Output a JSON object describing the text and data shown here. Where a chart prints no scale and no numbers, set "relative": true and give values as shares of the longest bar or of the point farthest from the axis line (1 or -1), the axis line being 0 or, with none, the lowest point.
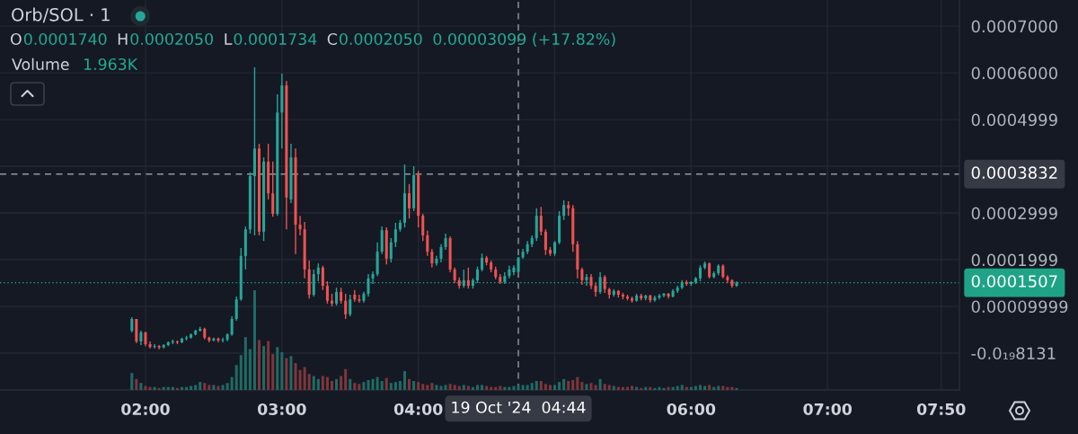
{
  "chart_data": [
    {
      "type": "candlestick",
      "title": "Orb/SOL · 1",
      "annotations": [
        "O",
        "0.0001740",
        "H",
        "0.0002050",
        "L",
        "0.0001734",
        "C",
        "0.0002050",
        "0.00003099 (+17.82%)"
      ],
      "x": [
        "2024-10-19T01:54",
        "2024-10-19T01:56",
        "2024-10-19T01:58",
        "2024-10-19T02:00",
        "2024-10-19T02:02",
        "2024-10-19T02:04",
        "2024-10-19T02:06",
        "2024-10-19T02:08",
        "2024-10-19T02:10",
        "2024-10-19T02:12",
        "2024-10-19T02:14",
        "2024-10-19T02:16",
        "2024-10-19T02:18",
        "2024-10-19T02:20",
        "2024-10-19T02:22",
        "2024-10-19T02:24",
        "2024-10-19T02:26",
        "2024-10-19T02:28",
        "2024-10-19T02:30",
        "2024-10-19T02:32",
        "2024-10-19T02:34",
        "2024-10-19T02:36",
        "2024-10-19T02:38",
        "2024-10-19T02:40",
        "2024-10-19T02:42",
        "2024-10-19T02:44",
        "2024-10-19T02:46",
        "2024-10-19T02:48",
        "2024-10-19T02:50",
        "2024-10-19T02:52",
        "2024-10-19T02:54",
        "2024-10-19T02:56",
        "2024-10-19T02:58",
        "2024-10-19T03:00",
        "2024-10-19T03:02",
        "2024-10-19T03:04",
        "2024-10-19T03:06",
        "2024-10-19T03:08",
        "2024-10-19T03:10",
        "2024-10-19T03:12",
        "2024-10-19T03:14",
        "2024-10-19T03:16",
        "2024-10-19T03:18",
        "2024-10-19T03:20",
        "2024-10-19T03:22",
        "2024-10-19T03:24",
        "2024-10-19T03:26",
        "2024-10-19T03:28",
        "2024-10-19T03:30",
        "2024-10-19T03:32",
        "2024-10-19T03:34",
        "2024-10-19T03:36",
        "2024-10-19T03:38",
        "2024-10-19T03:40",
        "2024-10-19T03:42",
        "2024-10-19T03:44",
        "2024-10-19T03:46",
        "2024-10-19T03:48",
        "2024-10-19T03:50",
        "2024-10-19T03:52",
        "2024-10-19T03:54",
        "2024-10-19T03:56",
        "2024-10-19T03:58",
        "2024-10-19T04:00",
        "2024-10-19T04:02",
        "2024-10-19T04:04",
        "2024-10-19T04:06",
        "2024-10-19T04:08",
        "2024-10-19T04:10",
        "2024-10-19T04:12",
        "2024-10-19T04:14",
        "2024-10-19T04:16",
        "2024-10-19T04:18",
        "2024-10-19T04:20",
        "2024-10-19T04:22",
        "2024-10-19T04:24",
        "2024-10-19T04:26",
        "2024-10-19T04:28",
        "2024-10-19T04:30",
        "2024-10-19T04:32",
        "2024-10-19T04:34",
        "2024-10-19T04:36",
        "2024-10-19T04:38",
        "2024-10-19T04:40",
        "2024-10-19T04:42",
        "2024-10-19T04:44",
        "2024-10-19T04:46",
        "2024-10-19T04:48",
        "2024-10-19T04:50",
        "2024-10-19T04:52",
        "2024-10-19T04:54",
        "2024-10-19T04:56",
        "2024-10-19T04:58",
        "2024-10-19T05:00",
        "2024-10-19T05:02",
        "2024-10-19T05:04",
        "2024-10-19T05:06",
        "2024-10-19T05:08",
        "2024-10-19T05:10",
        "2024-10-19T05:12",
        "2024-10-19T05:14",
        "2024-10-19T05:16",
        "2024-10-19T05:18",
        "2024-10-19T05:20",
        "2024-10-19T05:22",
        "2024-10-19T05:24",
        "2024-10-19T05:26",
        "2024-10-19T05:28",
        "2024-10-19T05:30",
        "2024-10-19T05:32",
        "2024-10-19T05:34",
        "2024-10-19T05:36",
        "2024-10-19T05:38",
        "2024-10-19T05:40",
        "2024-10-19T05:42",
        "2024-10-19T05:44",
        "2024-10-19T05:46",
        "2024-10-19T05:48",
        "2024-10-19T05:50",
        "2024-10-19T05:52",
        "2024-10-19T05:54",
        "2024-10-19T05:56",
        "2024-10-19T05:58",
        "2024-10-19T06:00",
        "2024-10-19T06:02",
        "2024-10-19T06:04",
        "2024-10-19T06:06",
        "2024-10-19T06:08",
        "2024-10-19T06:10",
        "2024-10-19T06:12",
        "2024-10-19T06:14",
        "2024-10-19T06:16",
        "2024-10-19T06:18",
        "2024-10-19T06:20"
      ],
      "ohlc": [
        [
          4.8e-05,
          7.7e-05,
          4.4e-05,
          7.3e-05
        ],
        [
          7.3e-05,
          7.3e-05,
          2.1e-05,
          2.5e-05
        ],
        [
          2.5e-05,
          4.8e-05,
          1.7e-05,
          4.4e-05
        ],
        [
          4.4e-05,
          4.6e-05,
          1.5e-05,
          1.9e-05
        ],
        [
          1.9e-05,
          2.5e-05,
          1e-05,
          1.3e-05
        ],
        [
          1.3e-05,
          1.9e-05,
          1e-05,
          1.5e-05
        ],
        [
          1.5e-05,
          1.7e-05,
          8e-06,
          1.2e-05
        ],
        [
          1.2e-05,
          1.9e-05,
          1e-05,
          1.7e-05
        ],
        [
          1.7e-05,
          2.5e-05,
          1.5e-05,
          2.3e-05
        ],
        [
          2.3e-05,
          2.9e-05,
          1.9e-05,
          2.5e-05
        ],
        [
          2.5e-05,
          2.7e-05,
          1.9e-05,
          2.3e-05
        ],
        [
          2.3e-05,
          3.3e-05,
          2.1e-05,
          3.1e-05
        ],
        [
          3.1e-05,
          3.7e-05,
          2.7e-05,
          3.3e-05
        ],
        [
          3.3e-05,
          4.2e-05,
          3.1e-05,
          4e-05
        ],
        [
          4e-05,
          5e-05,
          3.8e-05,
          4.8e-05
        ],
        [
          4.8e-05,
          5.6e-05,
          4.6e-05,
          5.2e-05
        ],
        [
          5.2e-05,
          5.4e-05,
          2.9e-05,
          3.3e-05
        ],
        [
          3.3e-05,
          3.5e-05,
          2.3e-05,
          2.7e-05
        ],
        [
          2.7e-05,
          3.3e-05,
          2.5e-05,
          3.1e-05
        ],
        [
          3.1e-05,
          3.3e-05,
          2.3e-05,
          2.7e-05
        ],
        [
          2.7e-05,
          3.3e-05,
          2.3e-05,
          2.9e-05
        ],
        [
          2.9e-05,
          4.2e-05,
          2.5e-05,
          4e-05
        ],
        [
          4e-05,
          7.9e-05,
          3.7e-05,
          7.3e-05
        ],
        [
          7.3e-05,
          0.000121,
          6.9e-05,
          0.000115
        ],
        [
          0.000115,
          0.000225,
          0.000112,
          0.000208
        ],
        [
          0.000208,
          0.000271,
          0.000179,
          0.000265
        ],
        [
          0.000265,
          0.000387,
          0.000256,
          0.000379
        ],
        [
          0.000379,
          0.000612,
          0.000252,
          0.000438
        ],
        [
          0.000438,
          0.000448,
          0.000252,
          0.00026
        ],
        [
          0.00026,
          0.000419,
          0.00024,
          0.00041
        ],
        [
          0.00041,
          0.000448,
          0.000329,
          0.000342
        ],
        [
          0.000342,
          0.00041,
          0.000292,
          0.000298
        ],
        [
          0.000298,
          0.000554,
          0.000294,
          0.000515
        ],
        [
          0.000515,
          0.000598,
          0.000438,
          0.000573
        ],
        [
          0.000573,
          0.000583,
          0.000265,
          0.000333
        ],
        [
          0.000329,
          0.000448,
          0.000321,
          0.000419
        ],
        [
          0.000419,
          0.000438,
          0.000212,
          0.000275
        ],
        [
          0.000275,
          0.000294,
          0.000252,
          0.000265
        ],
        [
          0.000265,
          0.000281,
          0.00016,
          0.000179
        ],
        [
          0.000179,
          0.000198,
          0.000117,
          0.000125
        ],
        [
          0.000125,
          0.000179,
          0.000121,
          0.000169
        ],
        [
          0.000169,
          0.000192,
          0.000154,
          0.000183
        ],
        [
          0.000183,
          0.000187,
          0.000135,
          0.000144
        ],
        [
          0.000144,
          0.000154,
          0.000106,
          0.000112
        ],
        [
          0.000112,
          0.000127,
          0.0001,
          0.000106
        ],
        [
          0.000106,
          0.00014,
          0.000102,
          0.000131
        ],
        [
          0.000131,
          0.00014,
          0.000106,
          0.000112
        ],
        [
          0.000112,
          0.000127,
          7.3e-05,
          8.3e-05
        ],
        [
          8.3e-05,
          0.000125,
          7.9e-05,
          0.000115
        ],
        [
          0.000125,
          0.000135,
          0.00011,
          0.000115
        ],
        [
          0.000115,
          0.000125,
          0.000108,
          0.000112
        ],
        [
          0.000112,
          0.000131,
          0.000108,
          0.000127
        ],
        [
          0.000127,
          0.000169,
          0.000121,
          0.00016
        ],
        [
          0.00016,
          0.000175,
          0.000148,
          0.000169
        ],
        [
          0.000169,
          0.000237,
          0.000165,
          0.000217
        ],
        [
          0.000217,
          0.000271,
          0.000212,
          0.000263
        ],
        [
          0.000263,
          0.000269,
          0.00019,
          0.000202
        ],
        [
          0.000202,
          0.000246,
          0.000194,
          0.000237
        ],
        [
          0.000237,
          0.000279,
          0.000227,
          0.000265
        ],
        [
          0.000265,
          0.000285,
          0.00026,
          0.000279
        ],
        [
          0.000279,
          0.000404,
          0.000269,
          0.000342
        ],
        [
          0.000342,
          0.000362,
          0.000288,
          0.00031
        ],
        [
          0.00031,
          0.0004,
          0.000304,
          0.000381
        ],
        [
          0.000381,
          0.00039,
          0.000269,
          0.000294
        ],
        [
          0.000294,
          0.000298,
          0.00024,
          0.000252
        ],
        [
          0.000252,
          0.000262,
          0.000208,
          0.000217
        ],
        [
          0.000217,
          0.000223,
          0.000183,
          0.000192
        ],
        [
          0.000192,
          0.000208,
          0.000187,
          0.000202
        ],
        [
          0.000202,
          0.000233,
          0.000194,
          0.000227
        ],
        [
          0.000227,
          0.000256,
          0.000221,
          0.000246
        ],
        [
          0.000246,
          0.00025,
          0.000173,
          0.000179
        ],
        [
          0.000179,
          0.000183,
          0.00015,
          0.000156
        ],
        [
          0.000156,
          0.000162,
          0.000138,
          0.000144
        ],
        [
          0.000144,
          0.000179,
          0.00014,
          0.000156
        ],
        [
          0.000156,
          0.000183,
          0.000138,
          0.000144
        ],
        [
          0.000144,
          0.00016,
          0.000138,
          0.000156
        ],
        [
          0.000156,
          0.000185,
          0.00015,
          0.000179
        ],
        [
          0.000179,
          0.000213,
          0.000175,
          0.000204
        ],
        [
          0.000204,
          0.000208,
          0.000188,
          0.000194
        ],
        [
          0.000194,
          0.000198,
          0.000173,
          0.000179
        ],
        [
          0.000179,
          0.000185,
          0.000158,
          0.000163
        ],
        [
          0.000163,
          0.000169,
          0.000148,
          0.000152
        ],
        [
          0.000152,
          0.000173,
          0.000148,
          0.000165
        ],
        [
          0.000165,
          0.000187,
          0.00016,
          0.000179
        ],
        [
          0.000173,
          0.000188,
          0.000167,
          0.000183
        ],
        [
          0.000174,
          0.000205,
          0.0001734,
          0.000205
        ],
        [
          0.000205,
          0.000223,
          0.000202,
          0.000217
        ],
        [
          0.000217,
          0.00024,
          0.000212,
          0.000233
        ],
        [
          0.000233,
          0.000252,
          0.000227,
          0.000246
        ],
        [
          0.000246,
          0.00031,
          0.00024,
          0.000294
        ],
        [
          0.000294,
          0.000313,
          0.000252,
          0.00026
        ],
        [
          0.00026,
          0.000265,
          0.00021,
          0.000221
        ],
        [
          0.000221,
          0.000227,
          0.000208,
          0.000213
        ],
        [
          0.000213,
          0.00024,
          0.000208,
          0.000237
        ],
        [
          0.000237,
          0.000304,
          0.000233,
          0.000294
        ],
        [
          0.000294,
          0.000327,
          0.000285,
          0.000317
        ],
        [
          0.000317,
          0.000325,
          0.000294,
          0.00031
        ],
        [
          0.00031,
          0.000317,
          0.000217,
          0.000233
        ],
        [
          0.000233,
          0.00024,
          0.00016,
          0.000179
        ],
        [
          0.000179,
          0.000183,
          0.000146,
          0.000156
        ],
        [
          0.000156,
          0.000169,
          0.000144,
          0.000163
        ],
        [
          0.000163,
          0.000169,
          0.000137,
          0.000144
        ],
        [
          0.000144,
          0.00015,
          0.000121,
          0.000131
        ],
        [
          0.000131,
          0.000173,
          0.000127,
          0.000163
        ],
        [
          0.000163,
          0.000167,
          0.000129,
          0.000137
        ],
        [
          0.000137,
          0.00014,
          0.000117,
          0.000125
        ],
        [
          0.000125,
          0.000137,
          0.000121,
          0.000133
        ],
        [
          0.000133,
          0.000135,
          0.000119,
          0.000125
        ],
        [
          0.000125,
          0.000129,
          0.000115,
          0.000121
        ],
        [
          0.000121,
          0.000125,
          0.000113,
          0.000117
        ],
        [
          0.000117,
          0.000121,
          0.000108,
          0.000112
        ],
        [
          0.000112,
          0.000127,
          0.00011,
          0.000123
        ],
        [
          0.000123,
          0.000127,
          0.000113,
          0.000117
        ],
        [
          0.000117,
          0.000125,
          0.000113,
          0.000123
        ],
        [
          0.000123,
          0.000125,
          0.000108,
          0.000113
        ],
        [
          0.000113,
          0.000123,
          0.00011,
          0.000119
        ],
        [
          0.000119,
          0.000127,
          0.000115,
          0.000123
        ],
        [
          0.000123,
          0.000129,
          0.000119,
          0.000127
        ],
        [
          0.000127,
          0.000129,
          0.000117,
          0.000121
        ],
        [
          0.000121,
          0.000137,
          0.000119,
          0.000133
        ],
        [
          0.000133,
          0.000144,
          0.000129,
          0.00014
        ],
        [
          0.00014,
          0.000156,
          0.000137,
          0.000152
        ],
        [
          0.000152,
          0.000156,
          0.000144,
          0.000148
        ],
        [
          0.000148,
          0.000154,
          0.000144,
          0.000152
        ],
        [
          0.000152,
          0.000163,
          0.000148,
          0.00016
        ],
        [
          0.00016,
          0.000188,
          0.000154,
          0.000183
        ],
        [
          0.000183,
          0.000196,
          0.000179,
          0.000192
        ],
        [
          0.000192,
          0.000194,
          0.00016,
          0.000163
        ],
        [
          0.000163,
          0.000175,
          0.00016,
          0.000171
        ],
        [
          0.000171,
          0.00019,
          0.000167,
          0.000187
        ],
        [
          0.000187,
          0.00019,
          0.00016,
          0.000163
        ],
        [
          0.000163,
          0.000167,
          0.00015,
          0.000156
        ],
        [
          0.000156,
          0.000158,
          0.00014,
          0.000144
        ],
        [
          0.000144,
          0.000154,
          0.000142,
          0.0001507
        ]
      ],
      "colors": [
        "#26a69a",
        "#ef5350",
        "#26a69a",
        "#ef5350",
        "#ef5350",
        "#26a69a",
        "#ef5350",
        "#26a69a",
        "#26a69a",
        "#26a69a",
        "#ef5350",
        "#26a69a",
        "#26a69a",
        "#26a69a",
        "#26a69a",
        "#26a69a",
        "#ef5350",
        "#ef5350",
        "#26a69a",
        "#ef5350",
        "#26a69a",
        "#26a69a",
        "#26a69a",
        "#26a69a",
        "#26a69a",
        "#26a69a",
        "#26a69a",
        "#26a69a",
        "#ef5350",
        "#26a69a",
        "#ef5350",
        "#ef5350",
        "#26a69a",
        "#26a69a",
        "#ef5350",
        "#26a69a",
        "#ef5350",
        "#ef5350",
        "#ef5350",
        "#ef5350",
        "#26a69a",
        "#26a69a",
        "#ef5350",
        "#ef5350",
        "#ef5350",
        "#26a69a",
        "#ef5350",
        "#ef5350",
        "#26a69a",
        "#ef5350",
        "#ef5350",
        "#26a69a",
        "#26a69a",
        "#26a69a",
        "#26a69a",
        "#26a69a",
        "#ef5350",
        "#26a69a",
        "#26a69a",
        "#26a69a",
        "#26a69a",
        "#ef5350",
        "#26a69a",
        "#ef5350",
        "#ef5350",
        "#ef5350",
        "#ef5350",
        "#26a69a",
        "#26a69a",
        "#26a69a",
        "#ef5350",
        "#ef5350",
        "#ef5350",
        "#26a69a",
        "#ef5350",
        "#26a69a",
        "#26a69a",
        "#26a69a",
        "#ef5350",
        "#ef5350",
        "#ef5350",
        "#ef5350",
        "#26a69a",
        "#26a69a",
        "#26a69a",
        "#26a69a",
        "#26a69a",
        "#26a69a",
        "#26a69a",
        "#26a69a",
        "#ef5350",
        "#ef5350",
        "#ef5350",
        "#26a69a",
        "#26a69a",
        "#26a69a",
        "#ef5350",
        "#ef5350",
        "#ef5350",
        "#ef5350",
        "#26a69a",
        "#ef5350",
        "#ef5350",
        "#26a69a",
        "#ef5350",
        "#ef5350",
        "#26a69a",
        "#ef5350",
        "#ef5350",
        "#ef5350",
        "#ef5350",
        "#26a69a",
        "#ef5350",
        "#26a69a",
        "#ef5350",
        "#26a69a",
        "#26a69a",
        "#26a69a",
        "#ef5350",
        "#26a69a",
        "#26a69a",
        "#26a69a",
        "#ef5350",
        "#26a69a",
        "#26a69a",
        "#26a69a",
        "#26a69a",
        "#ef5350",
        "#26a69a",
        "#26a69a",
        "#ef5350",
        "#ef5350",
        "#ef5350",
        "#26a69a"
      ],
      "xlim": [
        "2024-10-19T00:56",
        "2024-10-19T07:58"
      ],
      "xticks": [
        {
          "value": "2024-10-19T02:00",
          "label": "02:00"
        },
        {
          "value": "2024-10-19T03:00",
          "label": "03:00"
        },
        {
          "value": "2024-10-19T04:00",
          "label": "04:00"
        },
        {
          "value": "2024-10-19T05:00",
          "label": null
        },
        {
          "value": "2024-10-19T06:00",
          "label": "06:00"
        },
        {
          "value": "2024-10-19T07:00",
          "label": "07:00"
        },
        {
          "value": "2024-10-19T07:50",
          "label": "07:50"
        }
      ],
      "ylim": [
        -7.9e-05,
        0.000756
      ],
      "yticks": [
        {
          "value": -8.131e-21,
          "label": "-0.0₁₉8131"
        },
        {
          "value": 9.999e-05,
          "label": "0.00009999"
        },
        {
          "value": 0.0001999,
          "label": "0.0001999"
        },
        {
          "value": 0.0002999,
          "label": "0.0002999"
        },
        {
          "value": 0.0004,
          "label": null
        },
        {
          "value": 0.0004999,
          "label": "0.0004999"
        },
        {
          "value": 0.0006,
          "label": "0.0006000"
        },
        {
          "value": 0.0007,
          "label": "0.0007000"
        }
      ],
      "grid": true,
      "ref_lines": [
        {
          "axis": "x",
          "value": "2024-10-19T04:44",
          "label": "19 Oct '24  04:44",
          "line_style": "dashed",
          "color": "#9598a1"
        },
        {
          "axis": "y",
          "value": 0.0003832,
          "label": "0.0003832",
          "line_style": "dashed",
          "color": "#9598a1"
        },
        {
          "axis": "y",
          "value": 0.0001507,
          "label": "0.0001507",
          "line_style": "dotted",
          "color": "#1fa386"
        }
      ]
    },
    {
      "type": "bar",
      "title": "Volume",
      "annotations": [
        "1.963K"
      ],
      "relative": true,
      "x": [
        "2024-10-19T01:54",
        "2024-10-19T01:56",
        "2024-10-19T01:58",
        "2024-10-19T02:00",
        "2024-10-19T02:02",
        "2024-10-19T02:04",
        "2024-10-19T02:06",
        "2024-10-19T02:08",
        "2024-10-19T02:10",
        "2024-10-19T02:12",
        "2024-10-19T02:14",
        "2024-10-19T02:16",
        "2024-10-19T02:18",
        "2024-10-19T02:20",
        "2024-10-19T02:22",
        "2024-10-19T02:24",
        "2024-10-19T02:26",
        "2024-10-19T02:28",
        "2024-10-19T02:30",
        "2024-10-19T02:32",
        "2024-10-19T02:34",
        "2024-10-19T02:36",
        "2024-10-19T02:38",
        "2024-10-19T02:40",
        "2024-10-19T02:42",
        "2024-10-19T02:44",
        "2024-10-19T02:46",
        "2024-10-19T02:48",
        "2024-10-19T02:50",
        "2024-10-19T02:52",
        "2024-10-19T02:54",
        "2024-10-19T02:56",
        "2024-10-19T02:58",
        "2024-10-19T03:00",
        "2024-10-19T03:02",
        "2024-10-19T03:04",
        "2024-10-19T03:06",
        "2024-10-19T03:08",
        "2024-10-19T03:10",
        "2024-10-19T03:12",
        "2024-10-19T03:14",
        "2024-10-19T03:16",
        "2024-10-19T03:18",
        "2024-10-19T03:20",
        "2024-10-19T03:22",
        "2024-10-19T03:24",
        "2024-10-19T03:26",
        "2024-10-19T03:28",
        "2024-10-19T03:30",
        "2024-10-19T03:32",
        "2024-10-19T03:34",
        "2024-10-19T03:36",
        "2024-10-19T03:38",
        "2024-10-19T03:40",
        "2024-10-19T03:42",
        "2024-10-19T03:44",
        "2024-10-19T03:46",
        "2024-10-19T03:48",
        "2024-10-19T03:50",
        "2024-10-19T03:52",
        "2024-10-19T03:54",
        "2024-10-19T03:56",
        "2024-10-19T03:58",
        "2024-10-19T04:00",
        "2024-10-19T04:02",
        "2024-10-19T04:04",
        "2024-10-19T04:06",
        "2024-10-19T04:08",
        "2024-10-19T04:10",
        "2024-10-19T04:12",
        "2024-10-19T04:14",
        "2024-10-19T04:16",
        "2024-10-19T04:18",
        "2024-10-19T04:20",
        "2024-10-19T04:22",
        "2024-10-19T04:24",
        "2024-10-19T04:26",
        "2024-10-19T04:28",
        "2024-10-19T04:30",
        "2024-10-19T04:32",
        "2024-10-19T04:34",
        "2024-10-19T04:36",
        "2024-10-19T04:38",
        "2024-10-19T04:40",
        "2024-10-19T04:42",
        "2024-10-19T04:44",
        "2024-10-19T04:46",
        "2024-10-19T04:48",
        "2024-10-19T04:50",
        "2024-10-19T04:52",
        "2024-10-19T04:54",
        "2024-10-19T04:56",
        "2024-10-19T04:58",
        "2024-10-19T05:00",
        "2024-10-19T05:02",
        "2024-10-19T05:04",
        "2024-10-19T05:06",
        "2024-10-19T05:08",
        "2024-10-19T05:10",
        "2024-10-19T05:12",
        "2024-10-19T05:14",
        "2024-10-19T05:16",
        "2024-10-19T05:18",
        "2024-10-19T05:20",
        "2024-10-19T05:22",
        "2024-10-19T05:24",
        "2024-10-19T05:26",
        "2024-10-19T05:28",
        "2024-10-19T05:30",
        "2024-10-19T05:32",
        "2024-10-19T05:34",
        "2024-10-19T05:36",
        "2024-10-19T05:38",
        "2024-10-19T05:40",
        "2024-10-19T05:42",
        "2024-10-19T05:44",
        "2024-10-19T05:46",
        "2024-10-19T05:48",
        "2024-10-19T05:50",
        "2024-10-19T05:52",
        "2024-10-19T05:54",
        "2024-10-19T05:56",
        "2024-10-19T05:58",
        "2024-10-19T06:00",
        "2024-10-19T06:02",
        "2024-10-19T06:04",
        "2024-10-19T06:06",
        "2024-10-19T06:08",
        "2024-10-19T06:10",
        "2024-10-19T06:12",
        "2024-10-19T06:14",
        "2024-10-19T06:16",
        "2024-10-19T06:18",
        "2024-10-19T06:20"
      ],
      "values": [
        0.17,
        0.11,
        0.07,
        0.04,
        0.03,
        0.03,
        0.02,
        0.03,
        0.03,
        0.03,
        0.02,
        0.03,
        0.03,
        0.04,
        0.05,
        0.08,
        0.07,
        0.05,
        0.05,
        0.04,
        0.05,
        0.07,
        0.13,
        0.25,
        0.35,
        0.53,
        0.41,
        1,
        0.5,
        0.44,
        0.49,
        0.36,
        0.43,
        0.38,
        0.32,
        0.34,
        0.27,
        0.2,
        0.23,
        0.16,
        0.14,
        0.11,
        0.14,
        0.13,
        0.09,
        0.11,
        0.14,
        0.21,
        0.11,
        0.07,
        0.06,
        0.08,
        0.1,
        0.11,
        0.13,
        0.09,
        0.12,
        0.07,
        0.08,
        0.09,
        0.19,
        0.11,
        0.09,
        0.08,
        0.06,
        0.05,
        0.07,
        0.05,
        0.04,
        0.05,
        0.06,
        0.05,
        0.04,
        0.05,
        0.04,
        0.03,
        0.05,
        0.05,
        0.04,
        0.03,
        0.03,
        0.04,
        0.03,
        0.03,
        0.04,
        0.05,
        0.05,
        0.05,
        0.07,
        0.09,
        0.09,
        0.06,
        0.05,
        0.05,
        0.08,
        0.11,
        0.09,
        0.1,
        0.13,
        0.08,
        0.06,
        0.07,
        0.05,
        0.11,
        0.06,
        0.05,
        0.04,
        0.03,
        0.03,
        0.03,
        0.04,
        0.03,
        0.02,
        0.03,
        0.03,
        0.02,
        0.03,
        0.02,
        0.03,
        0.03,
        0.04,
        0.05,
        0.03,
        0.03,
        0.04,
        0.05,
        0.04,
        0.05,
        0.03,
        0.04,
        0.04,
        0.03,
        0.03,
        0.02
      ],
      "colors": [
        "#1f6b65",
        "#7e363b",
        "#1f6b65",
        "#7e363b",
        "#7e363b",
        "#1f6b65",
        "#7e363b",
        "#1f6b65",
        "#1f6b65",
        "#1f6b65",
        "#7e363b",
        "#1f6b65",
        "#1f6b65",
        "#1f6b65",
        "#1f6b65",
        "#1f6b65",
        "#7e363b",
        "#7e363b",
        "#1f6b65",
        "#7e363b",
        "#1f6b65",
        "#1f6b65",
        "#1f6b65",
        "#1f6b65",
        "#1f6b65",
        "#1f6b65",
        "#1f6b65",
        "#1f6b65",
        "#7e363b",
        "#1f6b65",
        "#7e363b",
        "#7e363b",
        "#1f6b65",
        "#1f6b65",
        "#7e363b",
        "#1f6b65",
        "#7e363b",
        "#7e363b",
        "#7e363b",
        "#7e363b",
        "#1f6b65",
        "#1f6b65",
        "#7e363b",
        "#7e363b",
        "#7e363b",
        "#1f6b65",
        "#7e363b",
        "#7e363b",
        "#1f6b65",
        "#7e363b",
        "#7e363b",
        "#1f6b65",
        "#1f6b65",
        "#1f6b65",
        "#1f6b65",
        "#1f6b65",
        "#7e363b",
        "#1f6b65",
        "#1f6b65",
        "#1f6b65",
        "#1f6b65",
        "#7e363b",
        "#1f6b65",
        "#7e363b",
        "#7e363b",
        "#7e363b",
        "#7e363b",
        "#1f6b65",
        "#1f6b65",
        "#1f6b65",
        "#7e363b",
        "#7e363b",
        "#7e363b",
        "#1f6b65",
        "#7e363b",
        "#1f6b65",
        "#1f6b65",
        "#1f6b65",
        "#7e363b",
        "#7e363b",
        "#7e363b",
        "#7e363b",
        "#1f6b65",
        "#1f6b65",
        "#1f6b65",
        "#1f6b65",
        "#1f6b65",
        "#1f6b65",
        "#1f6b65",
        "#1f6b65",
        "#7e363b",
        "#7e363b",
        "#7e363b",
        "#1f6b65",
        "#1f6b65",
        "#1f6b65",
        "#7e363b",
        "#7e363b",
        "#7e363b",
        "#7e363b",
        "#1f6b65",
        "#7e363b",
        "#7e363b",
        "#1f6b65",
        "#7e363b",
        "#7e363b",
        "#1f6b65",
        "#7e363b",
        "#7e363b",
        "#7e363b",
        "#7e363b",
        "#1f6b65",
        "#7e363b",
        "#1f6b65",
        "#7e363b",
        "#1f6b65",
        "#1f6b65",
        "#1f6b65",
        "#7e363b",
        "#1f6b65",
        "#1f6b65",
        "#1f6b65",
        "#7e363b",
        "#1f6b65",
        "#1f6b65",
        "#1f6b65",
        "#1f6b65",
        "#7e363b",
        "#1f6b65",
        "#1f6b65",
        "#7e363b",
        "#7e363b",
        "#7e363b",
        "#1f6b65"
      ],
      "xlim": [
        "2024-10-19T00:56",
        "2024-10-19T07:58"
      ]
    }
  ]
}
